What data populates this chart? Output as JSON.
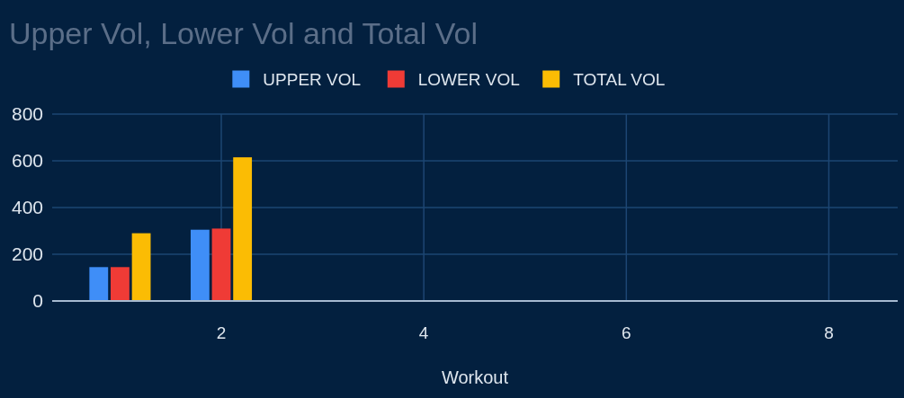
{
  "chart_data": {
    "type": "bar",
    "title": "Upper Vol, Lower Vol and Total Vol",
    "xlabel": "Workout",
    "x": [
      1,
      2
    ],
    "series": [
      {
        "name": "UPPER VOL",
        "color": "#3f8ef7",
        "values": [
          145,
          305
        ]
      },
      {
        "name": "LOWER VOL",
        "color": "#ef3b36",
        "values": [
          145,
          310
        ]
      },
      {
        "name": "TOTAL VOL",
        "color": "#fbbc04",
        "values": [
          290,
          615
        ]
      }
    ],
    "xlim": [
      0.33,
      8.68
    ],
    "xticks": [
      2,
      4,
      6,
      8
    ],
    "ylim": [
      0,
      800
    ],
    "yticks": [
      0,
      200,
      400,
      600,
      800
    ],
    "grid": true,
    "legend": "top"
  }
}
